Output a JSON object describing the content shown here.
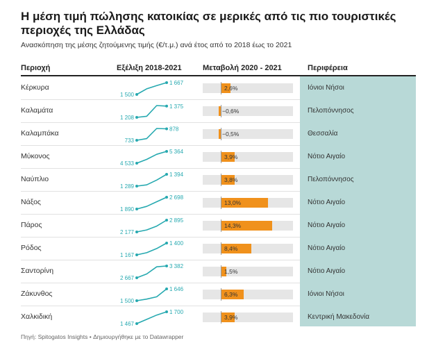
{
  "title": "Η μέση τιμή πώλησης κατοικίας σε μερικές από τις πιο τουριστικές περιοχές της Ελλάδας",
  "subtitle": "Ανασκόπηση της μέσης ζητούμενης τιμής (€/τ.μ.) ανά έτος από το 2018 έως το 2021",
  "footer": "Πηγή: Spitogatos Insights • Δημιουργήθηκε με το Datawrapper",
  "colors": {
    "bar": "#f0911c",
    "spark": "#26a9b0",
    "region_bg": "#b8d9d7"
  },
  "chart_data": {
    "type": "table",
    "columns": [
      "Περιοχή",
      "Εξέλιξη 2018-2021",
      "Μεταβολή 2020 - 2021",
      "Περιφέρεια"
    ],
    "years": [
      2018,
      2019,
      2020,
      2021
    ],
    "change_range": [
      -5,
      20
    ],
    "rows": [
      {
        "area": "Κέρκυρα",
        "series": [
          1500,
          1580,
          1625,
          1667
        ],
        "start_label": "1 500",
        "end_label": "1 667",
        "change": 2.6,
        "change_label": "2,6%",
        "region": "Ιόνιοι Νήσοι"
      },
      {
        "area": "Καλαμάτα",
        "series": [
          1208,
          1224,
          1383,
          1375
        ],
        "start_label": "1 208",
        "end_label": "1 375",
        "change": -0.6,
        "change_label": "−0,6%",
        "region": "Πελοπόννησος"
      },
      {
        "area": "Καλαμπάκα",
        "series": [
          733,
          754,
          882,
          878
        ],
        "start_label": "733",
        "end_label": "878",
        "change": -0.5,
        "change_label": "−0,5%",
        "region": "Θεσσαλία"
      },
      {
        "area": "Μύκονος",
        "series": [
          4533,
          4800,
          5160,
          5364
        ],
        "start_label": "4 533",
        "end_label": "5 364",
        "change": 3.9,
        "change_label": "3,9%",
        "region": "Νότιο Αιγαίο"
      },
      {
        "area": "Ναύπλιο",
        "series": [
          1289,
          1300,
          1343,
          1394
        ],
        "start_label": "1 289",
        "end_label": "1 394",
        "change": 3.8,
        "change_label": "3,8%",
        "region": "Πελοπόννησος"
      },
      {
        "area": "Νάξος",
        "series": [
          1890,
          2070,
          2387,
          2698
        ],
        "start_label": "1 890",
        "end_label": "2 698",
        "change": 13.0,
        "change_label": "13,0%",
        "region": "Νότιο Αιγαίο"
      },
      {
        "area": "Πάρος",
        "series": [
          2177,
          2300,
          2533,
          2895
        ],
        "start_label": "2 177",
        "end_label": "2 895",
        "change": 14.3,
        "change_label": "14,3%",
        "region": "Νότιο Αιγαίο"
      },
      {
        "area": "Ρόδος",
        "series": [
          1167,
          1210,
          1292,
          1400
        ],
        "start_label": "1 167",
        "end_label": "1 400",
        "change": 8.4,
        "change_label": "8,4%",
        "region": "Νότιο Αιγαίο"
      },
      {
        "area": "Σαντορίνη",
        "series": [
          2667,
          2900,
          3332,
          3382
        ],
        "start_label": "2 667",
        "end_label": "3 382",
        "change": 1.5,
        "change_label": "1,5%",
        "region": "Νότιο Αιγαίο"
      },
      {
        "area": "Ζάκυνθος",
        "series": [
          1500,
          1520,
          1548,
          1646
        ],
        "start_label": "1 500",
        "end_label": "1 646",
        "change": 6.3,
        "change_label": "6,3%",
        "region": "Ιόνιοι Νήσοι"
      },
      {
        "area": "Χαλκιδική",
        "series": [
          1467,
          1550,
          1636,
          1700
        ],
        "start_label": "1 467",
        "end_label": "1 700",
        "change": 3.9,
        "change_label": "3,9%",
        "region": "Κεντρική Μακεδονία"
      }
    ]
  }
}
